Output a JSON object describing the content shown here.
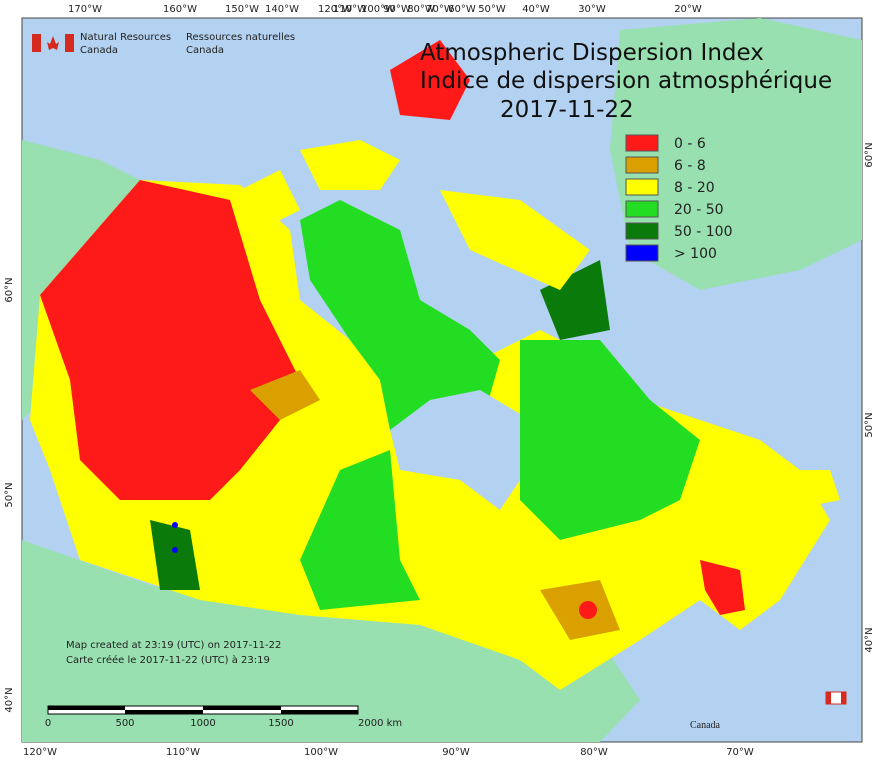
{
  "title": {
    "line1": "Atmospheric Dispersion Index",
    "line2": "Indice de dispersion atmosphérique",
    "date": "2017-11-22"
  },
  "agency": {
    "en_line1": "Natural Resources",
    "en_line2": "Canada",
    "fr_line1": "Ressources naturelles",
    "fr_line2": "Canada"
  },
  "legend": [
    {
      "label": "0 - 6",
      "color": "#ff1a1a"
    },
    {
      "label": "6 - 8",
      "color": "#d9a000"
    },
    {
      "label": "8 - 20",
      "color": "#ffff00"
    },
    {
      "label": "20 - 50",
      "color": "#22dd22"
    },
    {
      "label": "50 - 100",
      "color": "#0a7a0a"
    },
    {
      "label": "> 100",
      "color": "#0000ff"
    }
  ],
  "top_longitudes": [
    "170°W",
    "160°W",
    "150°W",
    "140°W",
    "120°W",
    "110°W",
    "100°W",
    "90°W",
    "80°W",
    "70°W",
    "60°W",
    "50°W",
    "40°W",
    "30°W",
    "20°W"
  ],
  "bottom_longitudes": [
    "120°W",
    "110°W",
    "100°W",
    "90°W",
    "80°W",
    "70°W"
  ],
  "left_latitudes": [
    "60°N",
    "50°N",
    "40°N"
  ],
  "right_latitudes": [
    "60°N",
    "50°N",
    "40°N"
  ],
  "note": {
    "line1": "Map created at 23:19 (UTC) on 2017-11-22",
    "line2": "Carte créée le 2017-11-22 (UTC) à 23:19"
  },
  "scale_bar": [
    "0",
    "500",
    "1000",
    "1500",
    "2000 km"
  ],
  "wordmark": "Canada"
}
